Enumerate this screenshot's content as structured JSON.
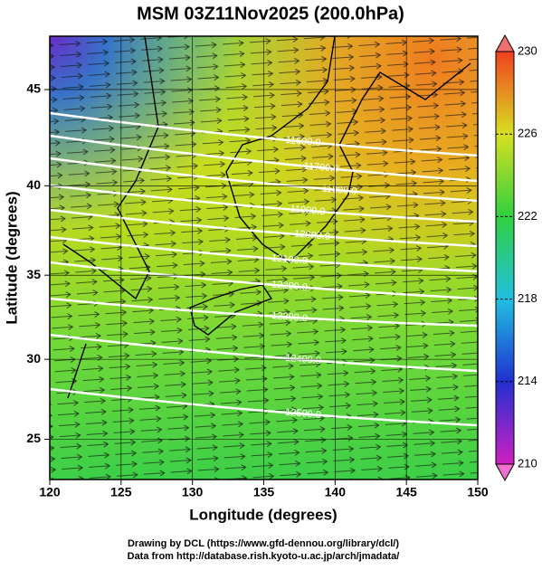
{
  "chart_data": {
    "type": "map",
    "title": "MSM 03Z11Nov2025 (200.0hPa)",
    "x_label": "Longitude (degrees)",
    "y_label": "Latitude  (degrees)",
    "xlim": [
      120,
      150
    ],
    "ylim": [
      22.4,
      47.6
    ],
    "xticks": [
      120,
      125,
      130,
      135,
      140,
      145,
      150
    ],
    "yticks": [
      25,
      30,
      35,
      40,
      45
    ],
    "grid": true,
    "colorbar": {
      "range": [
        210,
        230
      ],
      "ticks": [
        210,
        214,
        218,
        222,
        226,
        230
      ]
    },
    "contours": {
      "values": [
        11600,
        11700,
        11800,
        11900,
        12000,
        12100,
        12200,
        12300,
        12400,
        12500
      ],
      "value_labels": [
        "11600.0",
        "11700.0",
        "11800.0",
        "11900.0",
        "12000.0",
        "12100.0",
        "12200.0",
        "12300.0",
        "12400.0",
        "12500.0"
      ]
    },
    "credits": [
      "Drawing by DCL (https://www.gfd-dennou.org/library/dcl/)",
      "Data from http://database.rish.kyoto-u.ac.jp/arch/jmadata/"
    ]
  }
}
